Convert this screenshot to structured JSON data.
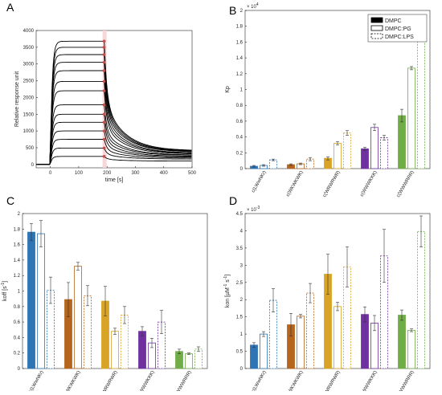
{
  "chart_data": [
    {
      "panel": "A",
      "type": "line",
      "xlabel": "time [s]",
      "ylabel": "Relative response unit",
      "xlim": [
        -50,
        500
      ],
      "ylim": [
        -100,
        4000
      ],
      "xticks": [
        0,
        100,
        200,
        300,
        400,
        500
      ],
      "yticks": [
        0,
        500,
        1000,
        1500,
        2000,
        2500,
        3000,
        3500,
        4000
      ],
      "injection_end_s": 190,
      "fill_color": "#f7d7d9",
      "curve_color": "#000000",
      "marker_color": "#c0504d",
      "plateaus": [
        3680,
        3500,
        3280,
        3050,
        2800,
        2480,
        2200,
        1780,
        1500,
        1260,
        1000,
        750,
        490,
        240
      ],
      "final_values": [
        410,
        395,
        380,
        370,
        340,
        330,
        310,
        280,
        270,
        240,
        220,
        190,
        160,
        100
      ]
    },
    {
      "panel": "B",
      "type": "bar",
      "ylabel": "Kp",
      "exponent_label": "× 10^4",
      "ylim": [
        0,
        2
      ],
      "yticks": [
        0,
        0.2,
        0.4,
        0.6,
        0.8,
        1,
        1.2,
        1.4,
        1.6,
        1.8,
        2
      ],
      "categories": [
        "c(LWwNKr)",
        "c(WKWKWK)",
        "c(WRWRWR)",
        "c(WWWKKK)",
        "c(WWWRRR)"
      ],
      "legend": [
        "DMPC",
        "DMPC:PG",
        "DMPC:LPS"
      ],
      "legend_position": "top-right",
      "series": [
        {
          "name": "DMPC",
          "values": [
            0.03,
            0.05,
            0.13,
            0.25,
            0.67
          ],
          "err": [
            0.01,
            0.01,
            0.02,
            0.02,
            0.08
          ]
        },
        {
          "name": "DMPC:PG",
          "values": [
            0.04,
            0.06,
            0.32,
            0.52,
            1.27
          ],
          "err": [
            0.01,
            0.01,
            0.02,
            0.04,
            0.02
          ]
        },
        {
          "name": "DMPC:LPS",
          "values": [
            0.11,
            0.12,
            0.45,
            0.39,
            1.71
          ],
          "err": [
            0.01,
            0.02,
            0.03,
            0.03,
            0.1
          ]
        }
      ]
    },
    {
      "panel": "C",
      "type": "bar",
      "ylabel": "koff [s^-1]",
      "ylim": [
        0,
        2
      ],
      "yticks": [
        0,
        0.2,
        0.4,
        0.6,
        0.8,
        1,
        1.2,
        1.4,
        1.6,
        1.8,
        2
      ],
      "categories": [
        "c(LWwNKr)",
        "c(WKWKWK)",
        "c(WRWRWR)",
        "c(WWWKKK)",
        "c(WWWRRR)"
      ],
      "series": [
        {
          "name": "DMPC",
          "values": [
            1.76,
            0.89,
            0.87,
            0.48,
            0.22
          ],
          "err": [
            0.11,
            0.22,
            0.19,
            0.06,
            0.03
          ]
        },
        {
          "name": "DMPC:PG",
          "values": [
            1.74,
            1.32,
            0.48,
            0.33,
            0.19
          ],
          "err": [
            0.17,
            0.05,
            0.04,
            0.06,
            0.01
          ]
        },
        {
          "name": "DMPC:LPS",
          "values": [
            1.01,
            0.94,
            0.69,
            0.6,
            0.25
          ],
          "err": [
            0.17,
            0.13,
            0.11,
            0.15,
            0.03
          ]
        }
      ]
    },
    {
      "panel": "D",
      "type": "bar",
      "ylabel": "kon [µM^-1 s^-1]",
      "exponent_label": "× 10^-3",
      "ylim": [
        0,
        4.5
      ],
      "yticks": [
        0,
        0.5,
        1,
        1.5,
        2,
        2.5,
        3,
        3.5,
        4,
        4.5
      ],
      "categories": [
        "c(LWwNKr)",
        "c(WKWKWK)",
        "c(WRWRWR)",
        "c(WWWKKK)",
        "c(WWWRRR)"
      ],
      "series": [
        {
          "name": "DMPC",
          "values": [
            0.68,
            1.27,
            2.74,
            1.57,
            1.55
          ],
          "err": [
            0.07,
            0.33,
            0.58,
            0.22,
            0.15
          ]
        },
        {
          "name": "DMPC:PG",
          "values": [
            1.0,
            1.52,
            1.8,
            1.32,
            1.11
          ],
          "err": [
            0.07,
            0.05,
            0.12,
            0.22,
            0.04
          ]
        },
        {
          "name": "DMPC:LPS",
          "values": [
            1.98,
            2.19,
            2.95,
            3.27,
            3.98
          ],
          "err": [
            0.34,
            0.28,
            0.58,
            0.77,
            0.45
          ]
        }
      ]
    }
  ],
  "colors": {
    "groups": [
      "#2e75b6",
      "#b5651d",
      "#d9a425",
      "#7030a0",
      "#70ad47"
    ],
    "axis": "#262626",
    "grid": "#d9d9d9"
  }
}
